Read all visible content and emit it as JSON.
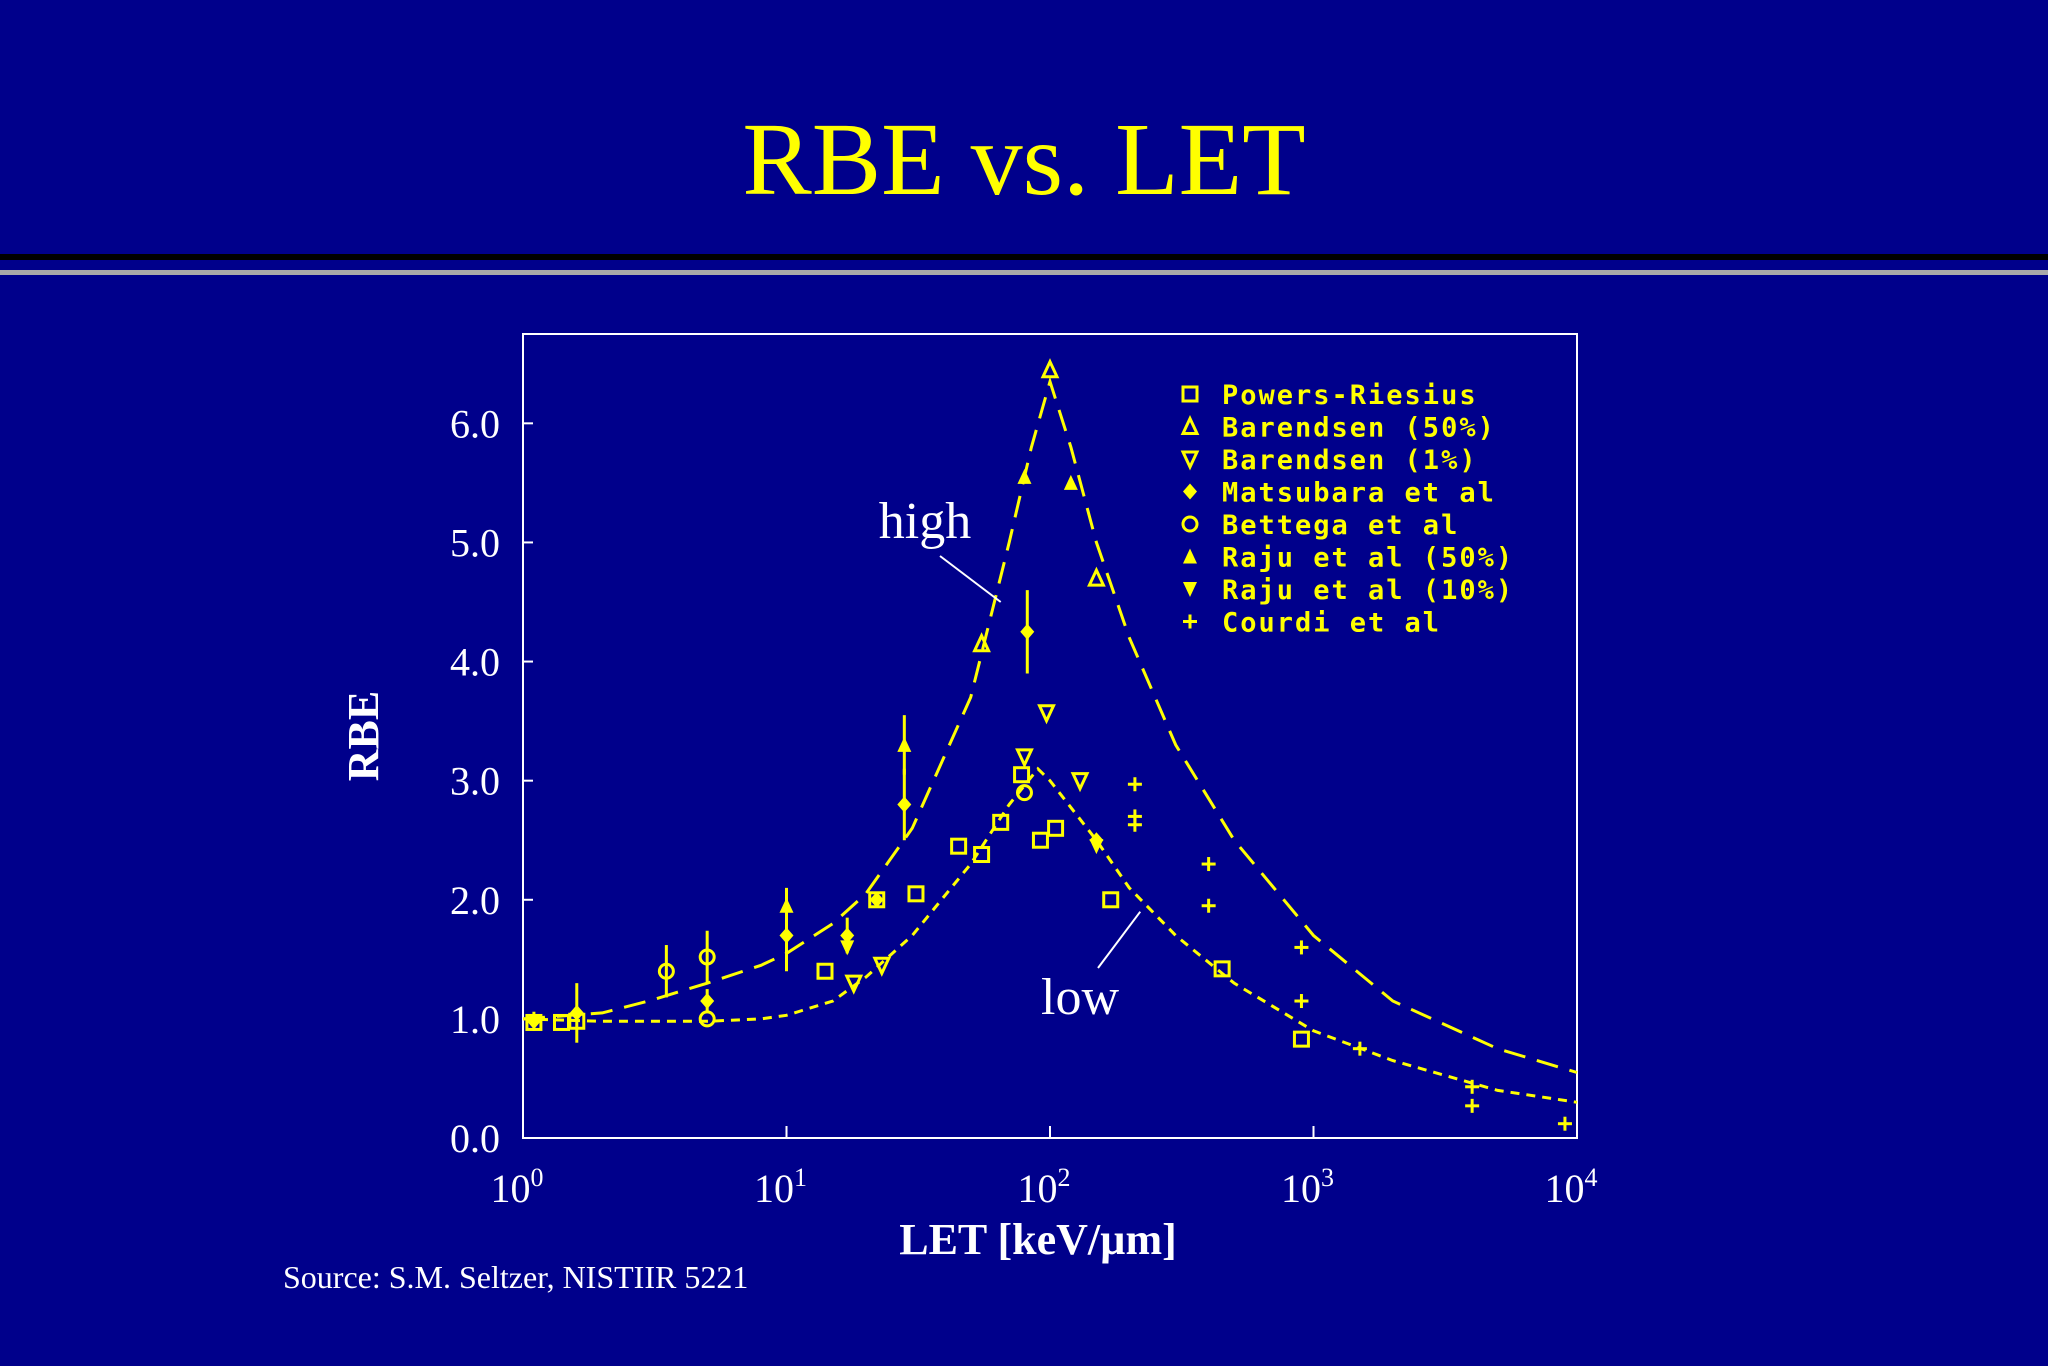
{
  "slide": {
    "title": "RBE vs. LET",
    "source": "Source: S.M. Seltzer, NISTIIR 5221"
  },
  "colors": {
    "background": "#00008b",
    "title": "#ffff00",
    "plot": "#ffff00",
    "axis_text": "#ffffff"
  },
  "chart_data": {
    "type": "scatter",
    "xlabel": "LET [keV/µm]",
    "ylabel": "RBE",
    "xscale": "log",
    "xlim": [
      1,
      10000
    ],
    "ylim": [
      0,
      6.75
    ],
    "x_ticks": [
      {
        "base": "10",
        "exp": "0",
        "value": 1
      },
      {
        "base": "10",
        "exp": "1",
        "value": 10
      },
      {
        "base": "10",
        "exp": "2",
        "value": 100
      },
      {
        "base": "10",
        "exp": "3",
        "value": 1000
      },
      {
        "base": "10",
        "exp": "4",
        "value": 10000
      }
    ],
    "y_ticks": [
      "0.0",
      "1.0",
      "2.0",
      "3.0",
      "4.0",
      "5.0",
      "6.0"
    ],
    "legend_position": "top-right",
    "legend": [
      {
        "symbol": "square",
        "label": "Powers-Riesius"
      },
      {
        "symbol": "triangle-up-open",
        "label": "Barendsen (50%)"
      },
      {
        "symbol": "triangle-down-open",
        "label": "Barendsen (1%)"
      },
      {
        "symbol": "diamond",
        "label": "Matsubara et al"
      },
      {
        "symbol": "circle",
        "label": "Bettega et al"
      },
      {
        "symbol": "triangle-up-filled",
        "label": "Raju et al (50%)"
      },
      {
        "symbol": "triangle-down-filled",
        "label": "Raju et al (10%)"
      },
      {
        "symbol": "plus",
        "label": "Courdi et al"
      }
    ],
    "curves": [
      {
        "label": "high",
        "style": "long-dash",
        "points": [
          [
            1,
            1.0
          ],
          [
            2,
            1.05
          ],
          [
            3,
            1.15
          ],
          [
            5,
            1.3
          ],
          [
            8,
            1.45
          ],
          [
            10,
            1.55
          ],
          [
            15,
            1.8
          ],
          [
            20,
            2.05
          ],
          [
            30,
            2.6
          ],
          [
            50,
            3.7
          ],
          [
            70,
            5.0
          ],
          [
            85,
            5.8
          ],
          [
            100,
            6.35
          ],
          [
            120,
            5.8
          ],
          [
            150,
            5.0
          ],
          [
            200,
            4.2
          ],
          [
            300,
            3.3
          ],
          [
            500,
            2.5
          ],
          [
            1000,
            1.7
          ],
          [
            2000,
            1.15
          ],
          [
            5000,
            0.75
          ],
          [
            10000,
            0.55
          ]
        ]
      },
      {
        "label": "low",
        "style": "short-dash",
        "points": [
          [
            1,
            1.0
          ],
          [
            2,
            0.98
          ],
          [
            5,
            0.98
          ],
          [
            8,
            1.0
          ],
          [
            10,
            1.03
          ],
          [
            15,
            1.15
          ],
          [
            20,
            1.35
          ],
          [
            30,
            1.7
          ],
          [
            50,
            2.3
          ],
          [
            70,
            2.8
          ],
          [
            90,
            3.1
          ],
          [
            100,
            3.0
          ],
          [
            150,
            2.5
          ],
          [
            200,
            2.1
          ],
          [
            300,
            1.7
          ],
          [
            500,
            1.3
          ],
          [
            1000,
            0.9
          ],
          [
            2000,
            0.65
          ],
          [
            5000,
            0.4
          ],
          [
            10000,
            0.3
          ]
        ]
      }
    ],
    "annotations": [
      {
        "text": "high",
        "x": 65,
        "y": 4.5
      },
      {
        "text": "low",
        "x": 220,
        "y": 1.9
      }
    ],
    "points": [
      {
        "symbol": "square",
        "x": 1.1,
        "y": 0.97
      },
      {
        "symbol": "square",
        "x": 1.4,
        "y": 0.97
      },
      {
        "symbol": "square",
        "x": 1.6,
        "y": 0.98
      },
      {
        "symbol": "square",
        "x": 14,
        "y": 1.4
      },
      {
        "symbol": "square",
        "x": 22,
        "y": 2.0
      },
      {
        "symbol": "square",
        "x": 31,
        "y": 2.05
      },
      {
        "symbol": "square",
        "x": 45,
        "y": 2.45
      },
      {
        "symbol": "square",
        "x": 55,
        "y": 2.38
      },
      {
        "symbol": "square",
        "x": 65,
        "y": 2.65
      },
      {
        "symbol": "square",
        "x": 78,
        "y": 3.05
      },
      {
        "symbol": "square",
        "x": 92,
        "y": 2.5
      },
      {
        "symbol": "square",
        "x": 105,
        "y": 2.6
      },
      {
        "symbol": "square",
        "x": 170,
        "y": 2.0
      },
      {
        "symbol": "square",
        "x": 450,
        "y": 1.42
      },
      {
        "symbol": "square",
        "x": 900,
        "y": 0.83
      },
      {
        "symbol": "triangle-up-open",
        "x": 100,
        "y": 6.45
      },
      {
        "symbol": "triangle-up-open",
        "x": 55,
        "y": 4.15
      },
      {
        "symbol": "triangle-up-open",
        "x": 150,
        "y": 4.7
      },
      {
        "symbol": "triangle-down-open",
        "x": 18,
        "y": 1.3
      },
      {
        "symbol": "triangle-down-open",
        "x": 23,
        "y": 1.45
      },
      {
        "symbol": "triangle-down-open",
        "x": 80,
        "y": 3.2
      },
      {
        "symbol": "triangle-down-open",
        "x": 130,
        "y": 3.0
      },
      {
        "symbol": "triangle-down-open",
        "x": 97,
        "y": 3.57
      },
      {
        "symbol": "diamond",
        "x": 1.1,
        "y": 0.98,
        "err": 0.08
      },
      {
        "symbol": "diamond",
        "x": 1.6,
        "y": 1.05,
        "err": 0.25
      },
      {
        "symbol": "diamond",
        "x": 5,
        "y": 1.15,
        "err": 0.1
      },
      {
        "symbol": "diamond",
        "x": 10,
        "y": 1.7,
        "err": 0.3
      },
      {
        "symbol": "diamond",
        "x": 17,
        "y": 1.7,
        "err": 0.15
      },
      {
        "symbol": "diamond",
        "x": 22,
        "y": 2.0
      },
      {
        "symbol": "diamond",
        "x": 28,
        "y": 2.8,
        "err": 0.3
      },
      {
        "symbol": "diamond",
        "x": 82,
        "y": 4.25,
        "err": 0.35
      },
      {
        "symbol": "diamond",
        "x": 150,
        "y": 2.5
      },
      {
        "symbol": "circle",
        "x": 3.5,
        "y": 1.4,
        "err": 0.22
      },
      {
        "symbol": "circle",
        "x": 5,
        "y": 1.52,
        "err": 0.22
      },
      {
        "symbol": "circle",
        "x": 5,
        "y": 1.0
      },
      {
        "symbol": "circle",
        "x": 80,
        "y": 2.9
      },
      {
        "symbol": "triangle-up-filled",
        "x": 10,
        "y": 1.95,
        "err": 0.15
      },
      {
        "symbol": "triangle-up-filled",
        "x": 28,
        "y": 3.3,
        "err": 0.25
      },
      {
        "symbol": "triangle-up-filled",
        "x": 80,
        "y": 5.55
      },
      {
        "symbol": "triangle-up-filled",
        "x": 120,
        "y": 5.5
      },
      {
        "symbol": "triangle-down-filled",
        "x": 17,
        "y": 1.6
      },
      {
        "symbol": "triangle-down-filled",
        "x": 150,
        "y": 2.45
      },
      {
        "symbol": "plus",
        "x": 210,
        "y": 2.97
      },
      {
        "symbol": "plus",
        "x": 210,
        "y": 2.7
      },
      {
        "symbol": "plus",
        "x": 210,
        "y": 2.63
      },
      {
        "symbol": "plus",
        "x": 400,
        "y": 2.3
      },
      {
        "symbol": "plus",
        "x": 400,
        "y": 1.95
      },
      {
        "symbol": "plus",
        "x": 900,
        "y": 1.6
      },
      {
        "symbol": "plus",
        "x": 900,
        "y": 1.15
      },
      {
        "symbol": "plus",
        "x": 1500,
        "y": 0.75
      },
      {
        "symbol": "plus",
        "x": 4000,
        "y": 0.43
      },
      {
        "symbol": "plus",
        "x": 4000,
        "y": 0.27
      },
      {
        "symbol": "plus",
        "x": 9000,
        "y": 0.12
      }
    ]
  }
}
